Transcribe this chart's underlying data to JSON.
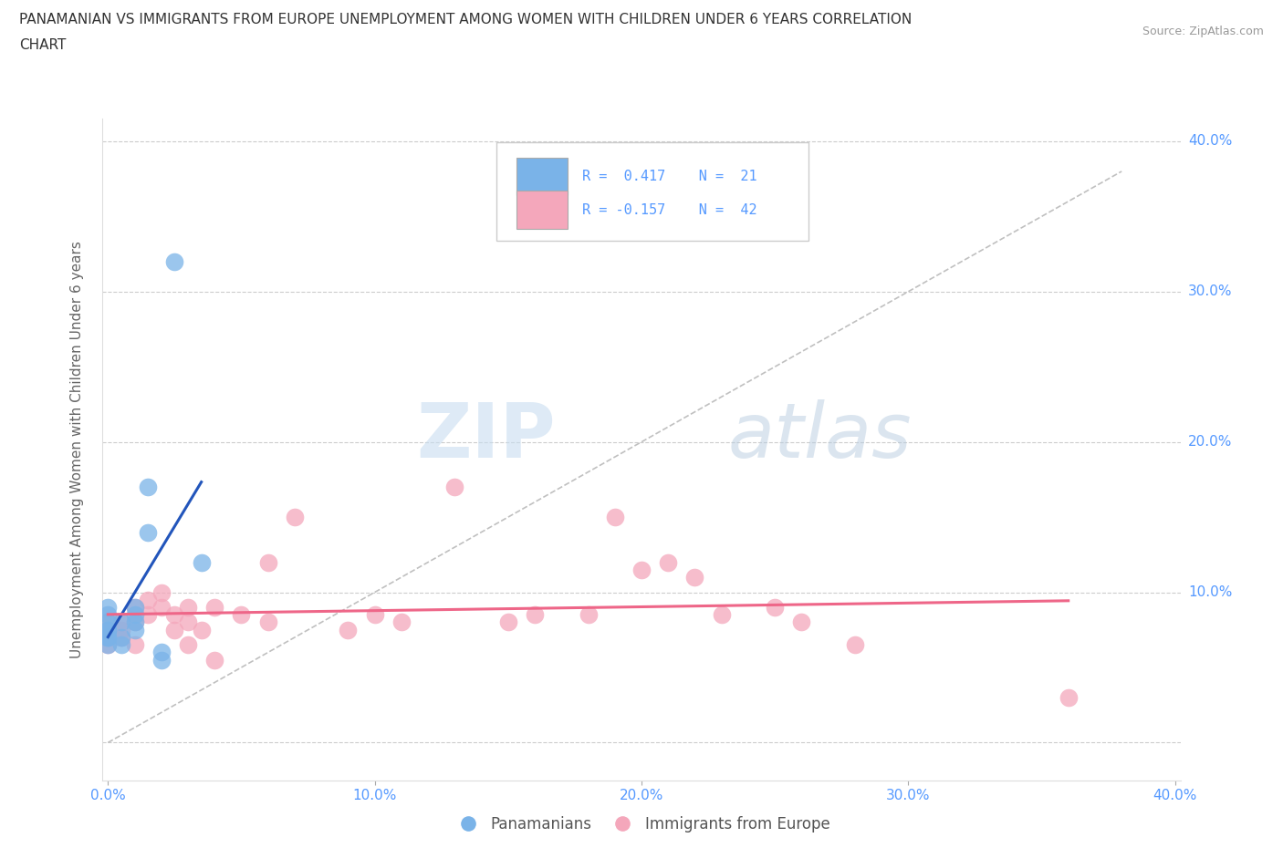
{
  "title_line1": "PANAMANIAN VS IMMIGRANTS FROM EUROPE UNEMPLOYMENT AMONG WOMEN WITH CHILDREN UNDER 6 YEARS CORRELATION",
  "title_line2": "CHART",
  "source": "Source: ZipAtlas.com",
  "ylabel": "Unemployment Among Women with Children Under 6 years",
  "xlim": [
    -0.002,
    0.402
  ],
  "ylim": [
    -0.025,
    0.415
  ],
  "xticks": [
    0.0,
    0.1,
    0.2,
    0.3,
    0.4
  ],
  "yticks": [
    0.0,
    0.1,
    0.2,
    0.3,
    0.4
  ],
  "xticklabels": [
    "0.0%",
    "10.0%",
    "20.0%",
    "30.0%",
    "40.0%"
  ],
  "yticklabels": [
    "",
    "10.0%",
    "20.0%",
    "30.0%",
    "40.0%"
  ],
  "background_color": "#ffffff",
  "grid_color": "#cccccc",
  "watermark_zip": "ZIP",
  "watermark_atlas": "atlas",
  "blue_color": "#7ab3e8",
  "pink_color": "#f4a7bb",
  "blue_line_color": "#2255bb",
  "pink_line_color": "#ee6688",
  "diag_line_color": "#c0c0c0",
  "tick_color": "#5599ff",
  "panamanian_x": [
    0.0,
    0.0,
    0.0,
    0.0,
    0.0,
    0.0,
    0.0,
    0.0,
    0.005,
    0.005,
    0.005,
    0.01,
    0.01,
    0.01,
    0.01,
    0.015,
    0.015,
    0.02,
    0.02,
    0.025,
    0.035
  ],
  "panamanian_y": [
    0.065,
    0.07,
    0.075,
    0.08,
    0.085,
    0.09,
    0.075,
    0.07,
    0.07,
    0.065,
    0.08,
    0.085,
    0.09,
    0.08,
    0.075,
    0.17,
    0.14,
    0.06,
    0.055,
    0.32,
    0.12
  ],
  "europe_x": [
    0.0,
    0.0,
    0.0,
    0.0,
    0.005,
    0.005,
    0.005,
    0.01,
    0.01,
    0.01,
    0.015,
    0.015,
    0.02,
    0.02,
    0.025,
    0.025,
    0.03,
    0.03,
    0.03,
    0.035,
    0.04,
    0.04,
    0.05,
    0.06,
    0.06,
    0.07,
    0.09,
    0.1,
    0.11,
    0.13,
    0.15,
    0.16,
    0.18,
    0.19,
    0.2,
    0.21,
    0.22,
    0.23,
    0.25,
    0.26,
    0.28,
    0.36
  ],
  "europe_y": [
    0.075,
    0.08,
    0.07,
    0.065,
    0.075,
    0.07,
    0.08,
    0.065,
    0.08,
    0.09,
    0.085,
    0.095,
    0.09,
    0.1,
    0.075,
    0.085,
    0.08,
    0.065,
    0.09,
    0.075,
    0.09,
    0.055,
    0.085,
    0.12,
    0.08,
    0.15,
    0.075,
    0.085,
    0.08,
    0.17,
    0.08,
    0.085,
    0.085,
    0.15,
    0.115,
    0.12,
    0.11,
    0.085,
    0.09,
    0.08,
    0.065,
    0.03
  ]
}
